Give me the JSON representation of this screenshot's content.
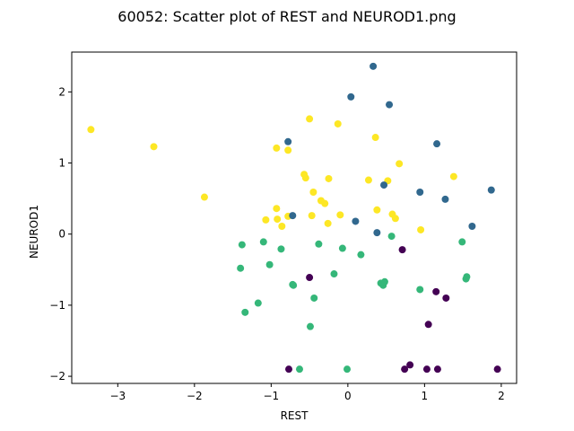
{
  "chart_data": {
    "type": "scatter",
    "title": "60052: Scatter plot of REST and NEUROD1.png",
    "xlabel": "REST",
    "ylabel": "NEUROD1",
    "xlim": [
      -3.6,
      2.2
    ],
    "ylim": [
      -2.1,
      2.56
    ],
    "xticks": [
      -3,
      -2,
      -1,
      0,
      1,
      2
    ],
    "yticks": [
      -2,
      -1,
      0,
      1,
      2
    ],
    "grid": false,
    "colors": {
      "yellow": "#fde725",
      "blue": "#31688e",
      "green": "#35b779",
      "purple": "#440154"
    },
    "points": [
      {
        "x": -3.35,
        "y": 1.47,
        "c": "yellow"
      },
      {
        "x": -2.53,
        "y": 1.23,
        "c": "yellow"
      },
      {
        "x": -1.87,
        "y": 0.52,
        "c": "yellow"
      },
      {
        "x": -0.93,
        "y": 1.21,
        "c": "yellow"
      },
      {
        "x": -0.78,
        "y": 1.18,
        "c": "yellow"
      },
      {
        "x": -0.5,
        "y": 1.62,
        "c": "yellow"
      },
      {
        "x": -0.13,
        "y": 1.55,
        "c": "yellow"
      },
      {
        "x": 0.36,
        "y": 1.36,
        "c": "yellow"
      },
      {
        "x": -0.57,
        "y": 0.84,
        "c": "yellow"
      },
      {
        "x": -0.55,
        "y": 0.79,
        "c": "yellow"
      },
      {
        "x": -0.25,
        "y": 0.78,
        "c": "yellow"
      },
      {
        "x": 0.27,
        "y": 0.76,
        "c": "yellow"
      },
      {
        "x": 0.52,
        "y": 0.75,
        "c": "yellow"
      },
      {
        "x": 0.67,
        "y": 0.99,
        "c": "yellow"
      },
      {
        "x": 1.38,
        "y": 0.81,
        "c": "yellow"
      },
      {
        "x": -0.45,
        "y": 0.59,
        "c": "yellow"
      },
      {
        "x": -0.35,
        "y": 0.47,
        "c": "yellow"
      },
      {
        "x": -0.3,
        "y": 0.43,
        "c": "yellow"
      },
      {
        "x": -0.93,
        "y": 0.36,
        "c": "yellow"
      },
      {
        "x": -0.47,
        "y": 0.26,
        "c": "yellow"
      },
      {
        "x": -0.78,
        "y": 0.25,
        "c": "yellow"
      },
      {
        "x": -1.07,
        "y": 0.2,
        "c": "yellow"
      },
      {
        "x": -0.92,
        "y": 0.21,
        "c": "yellow"
      },
      {
        "x": -0.86,
        "y": 0.11,
        "c": "yellow"
      },
      {
        "x": -0.26,
        "y": 0.15,
        "c": "yellow"
      },
      {
        "x": -0.1,
        "y": 0.27,
        "c": "yellow"
      },
      {
        "x": 0.38,
        "y": 0.34,
        "c": "yellow"
      },
      {
        "x": 0.58,
        "y": 0.28,
        "c": "yellow"
      },
      {
        "x": 0.62,
        "y": 0.22,
        "c": "yellow"
      },
      {
        "x": 0.95,
        "y": 0.06,
        "c": "yellow"
      },
      {
        "x": 0.33,
        "y": 2.36,
        "c": "blue"
      },
      {
        "x": 0.04,
        "y": 1.93,
        "c": "blue"
      },
      {
        "x": 0.54,
        "y": 1.82,
        "c": "blue"
      },
      {
        "x": -0.78,
        "y": 1.3,
        "c": "blue"
      },
      {
        "x": 1.16,
        "y": 1.27,
        "c": "blue"
      },
      {
        "x": 0.47,
        "y": 0.69,
        "c": "blue"
      },
      {
        "x": 0.94,
        "y": 0.59,
        "c": "blue"
      },
      {
        "x": 1.27,
        "y": 0.49,
        "c": "blue"
      },
      {
        "x": 1.87,
        "y": 0.62,
        "c": "blue"
      },
      {
        "x": -0.72,
        "y": 0.26,
        "c": "blue"
      },
      {
        "x": 0.1,
        "y": 0.18,
        "c": "blue"
      },
      {
        "x": 0.38,
        "y": 0.02,
        "c": "blue"
      },
      {
        "x": 1.62,
        "y": 0.11,
        "c": "blue"
      },
      {
        "x": -1.38,
        "y": -0.15,
        "c": "green"
      },
      {
        "x": -1.1,
        "y": -0.11,
        "c": "green"
      },
      {
        "x": -0.87,
        "y": -0.21,
        "c": "green"
      },
      {
        "x": -0.38,
        "y": -0.14,
        "c": "green"
      },
      {
        "x": -0.07,
        "y": -0.2,
        "c": "green"
      },
      {
        "x": 0.17,
        "y": -0.29,
        "c": "green"
      },
      {
        "x": 0.57,
        "y": -0.03,
        "c": "green"
      },
      {
        "x": 1.49,
        "y": -0.11,
        "c": "green"
      },
      {
        "x": -1.4,
        "y": -0.48,
        "c": "green"
      },
      {
        "x": -1.02,
        "y": -0.43,
        "c": "green"
      },
      {
        "x": -0.72,
        "y": -0.71,
        "c": "green"
      },
      {
        "x": -0.71,
        "y": -0.72,
        "c": "green"
      },
      {
        "x": -0.18,
        "y": -0.56,
        "c": "green"
      },
      {
        "x": 0.43,
        "y": -0.69,
        "c": "green"
      },
      {
        "x": 0.46,
        "y": -0.72,
        "c": "green"
      },
      {
        "x": 0.48,
        "y": -0.67,
        "c": "green"
      },
      {
        "x": 0.94,
        "y": -0.78,
        "c": "green"
      },
      {
        "x": 1.54,
        "y": -0.63,
        "c": "green"
      },
      {
        "x": 1.55,
        "y": -0.6,
        "c": "green"
      },
      {
        "x": -0.44,
        "y": -0.9,
        "c": "green"
      },
      {
        "x": -1.17,
        "y": -0.97,
        "c": "green"
      },
      {
        "x": -1.34,
        "y": -1.1,
        "c": "green"
      },
      {
        "x": -0.49,
        "y": -1.3,
        "c": "green"
      },
      {
        "x": -0.63,
        "y": -1.9,
        "c": "green"
      },
      {
        "x": -0.01,
        "y": -1.9,
        "c": "green"
      },
      {
        "x": 0.71,
        "y": -0.22,
        "c": "purple"
      },
      {
        "x": -0.5,
        "y": -0.61,
        "c": "purple"
      },
      {
        "x": 1.15,
        "y": -0.81,
        "c": "purple"
      },
      {
        "x": 1.28,
        "y": -0.9,
        "c": "purple"
      },
      {
        "x": 1.05,
        "y": -1.27,
        "c": "purple"
      },
      {
        "x": -0.77,
        "y": -1.9,
        "c": "purple"
      },
      {
        "x": 0.74,
        "y": -1.9,
        "c": "purple"
      },
      {
        "x": 0.81,
        "y": -1.84,
        "c": "purple"
      },
      {
        "x": 1.03,
        "y": -1.9,
        "c": "purple"
      },
      {
        "x": 1.17,
        "y": -1.9,
        "c": "purple"
      },
      {
        "x": 1.95,
        "y": -1.9,
        "c": "purple"
      }
    ]
  }
}
